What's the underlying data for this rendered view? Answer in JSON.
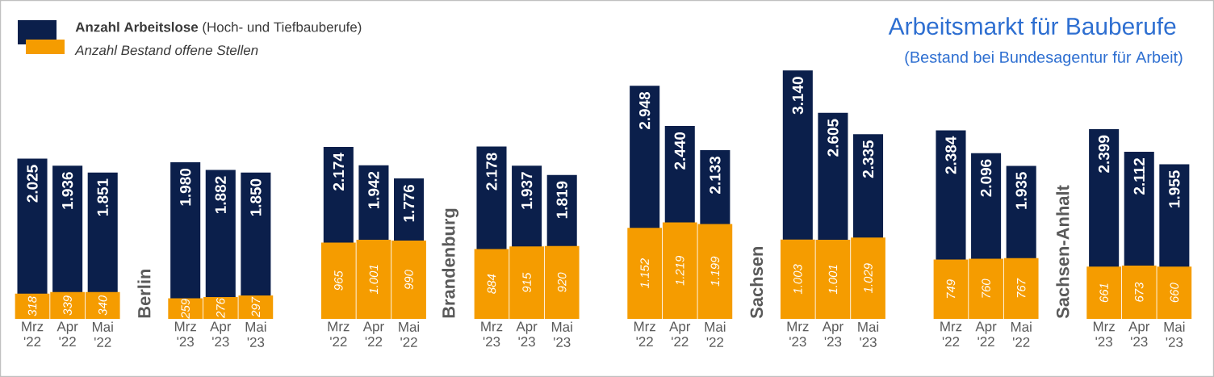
{
  "chart_data": {
    "type": "bar",
    "title": "Arbeitsmarkt für Bauberufe",
    "subtitle": "(Bestand bei Bundesagentur für Arbeit)",
    "categories": [
      "Mrz '22",
      "Apr '22",
      "Mai '22",
      "Mrz '23",
      "Apr '23",
      "Mai '23",
      "Mrz '22",
      "Apr '22",
      "Mai '22",
      "Mrz '23",
      "Apr '23",
      "Mai '23",
      "Mrz '22",
      "Apr '22",
      "Mai '22",
      "Mrz '23",
      "Apr '23",
      "Mai '23",
      "Mrz '22",
      "Apr '22",
      "Mai '22",
      "Mrz '23",
      "Apr '23",
      "Mai '23"
    ],
    "series": [
      {
        "name": "**Anzahl Arbeitslose** (Hoch- und Tiefbauberufe)",
        "color": "#0b1f4b",
        "values": [
          2025,
          1936,
          1851,
          1980,
          1882,
          1850,
          2174,
          1942,
          1776,
          2178,
          1937,
          1819,
          2948,
          2440,
          2133,
          3140,
          2605,
          2335,
          2384,
          2096,
          1935,
          2399,
          2112,
          1955
        ],
        "value_labels": [
          "2.025",
          "1.936",
          "1.851",
          "1.980",
          "1.882",
          "1.850",
          "2.174",
          "1.942",
          "1.776",
          "2.178",
          "1.937",
          "1.819",
          "2.948",
          "2.440",
          "2.133",
          "3.140",
          "2.605",
          "2.335",
          "2.384",
          "2.096",
          "1.935",
          "2.399",
          "2.112",
          "1.955"
        ]
      },
      {
        "name": "Anzahl Bestand offene Stellen",
        "color": "#f59c00",
        "values": [
          318,
          339,
          340,
          259,
          276,
          297,
          965,
          1001,
          990,
          884,
          915,
          920,
          1152,
          1219,
          1199,
          1003,
          1001,
          1029,
          749,
          760,
          767,
          661,
          673,
          660
        ],
        "value_labels": [
          "318",
          "339",
          "340",
          "259",
          "276",
          "297",
          "965",
          "1.001",
          "990",
          "884",
          "915",
          "920",
          "1.152",
          "1.219",
          "1.199",
          "1.003",
          "1.001",
          "1.029",
          "749",
          "760",
          "767",
          "661",
          "673",
          "660"
        ]
      }
    ],
    "annotations": [
      "Berlin",
      "Brandenburg",
      "Sachsen",
      "Sachsen-Anhalt"
    ],
    "legend": "top left"
  }
}
